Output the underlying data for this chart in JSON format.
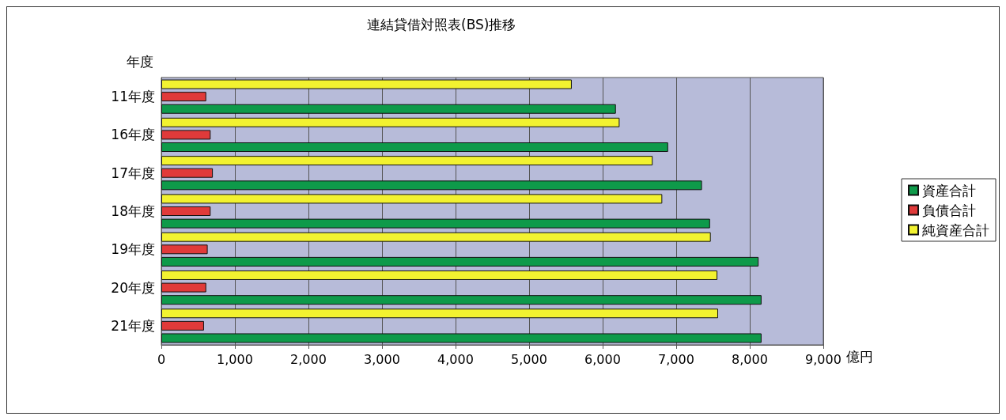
{
  "chart_data": {
    "type": "bar",
    "orientation": "horizontal",
    "title": "連結貸借対照表(BS)推移",
    "xlabel": "億円",
    "ylabel": "年度",
    "categories": [
      "11年度",
      "16年度",
      "17年度",
      "18年度",
      "19年度",
      "20年度",
      "21年度"
    ],
    "series": [
      {
        "name": "資産合計",
        "color": "#0e9a4a",
        "values": [
          6180,
          6890,
          7350,
          7460,
          8120,
          8160,
          8160
        ]
      },
      {
        "name": "負債合計",
        "color": "#e03a3a",
        "values": [
          610,
          670,
          700,
          670,
          630,
          610,
          580
        ]
      },
      {
        "name": "純資産合計",
        "color": "#f2f230",
        "values": [
          5580,
          6230,
          6680,
          6810,
          7470,
          7560,
          7570
        ]
      }
    ],
    "xlim": [
      0,
      9000
    ],
    "xticks": [
      0,
      {
        "value": 1000,
        "label": "1,000"
      },
      {
        "value": 2000,
        "label": "2,000"
      },
      {
        "value": 3000,
        "label": "3,000"
      },
      {
        "value": 4000,
        "label": "4,000"
      },
      {
        "value": 5000,
        "label": "5,000"
      },
      {
        "value": 6000,
        "label": "6,000"
      },
      {
        "value": 7000,
        "label": "7,000"
      },
      {
        "value": 8000,
        "label": "8,000"
      },
      {
        "value": 9000,
        "label": "9,000"
      }
    ],
    "grid": "x",
    "legend": "right"
  }
}
